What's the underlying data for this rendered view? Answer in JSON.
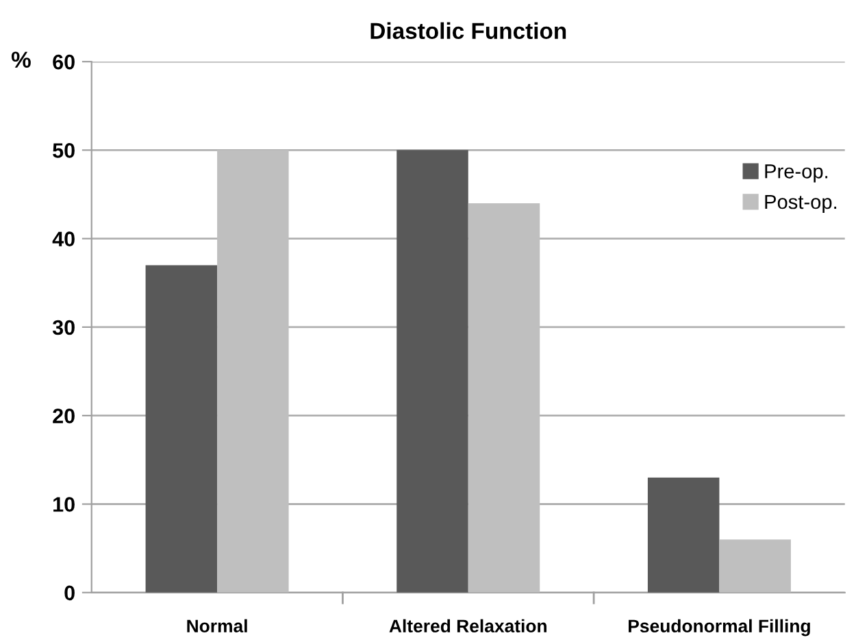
{
  "chart_data": {
    "type": "bar",
    "title": "Diastolic Function",
    "ylabel": "%",
    "categories": [
      "Normal",
      "Altered Relaxation",
      "Pseudonormal Filling"
    ],
    "series": [
      {
        "name": "Pre-op.",
        "color": "#595959",
        "values": [
          37,
          50,
          13
        ]
      },
      {
        "name": "Post-op.",
        "color": "#bfbfbf",
        "values": [
          50,
          44,
          6
        ]
      }
    ],
    "ylim": [
      0,
      60
    ],
    "yticks": [
      0,
      10,
      20,
      30,
      40,
      50,
      60
    ],
    "grid": "y",
    "legend": "top right"
  }
}
